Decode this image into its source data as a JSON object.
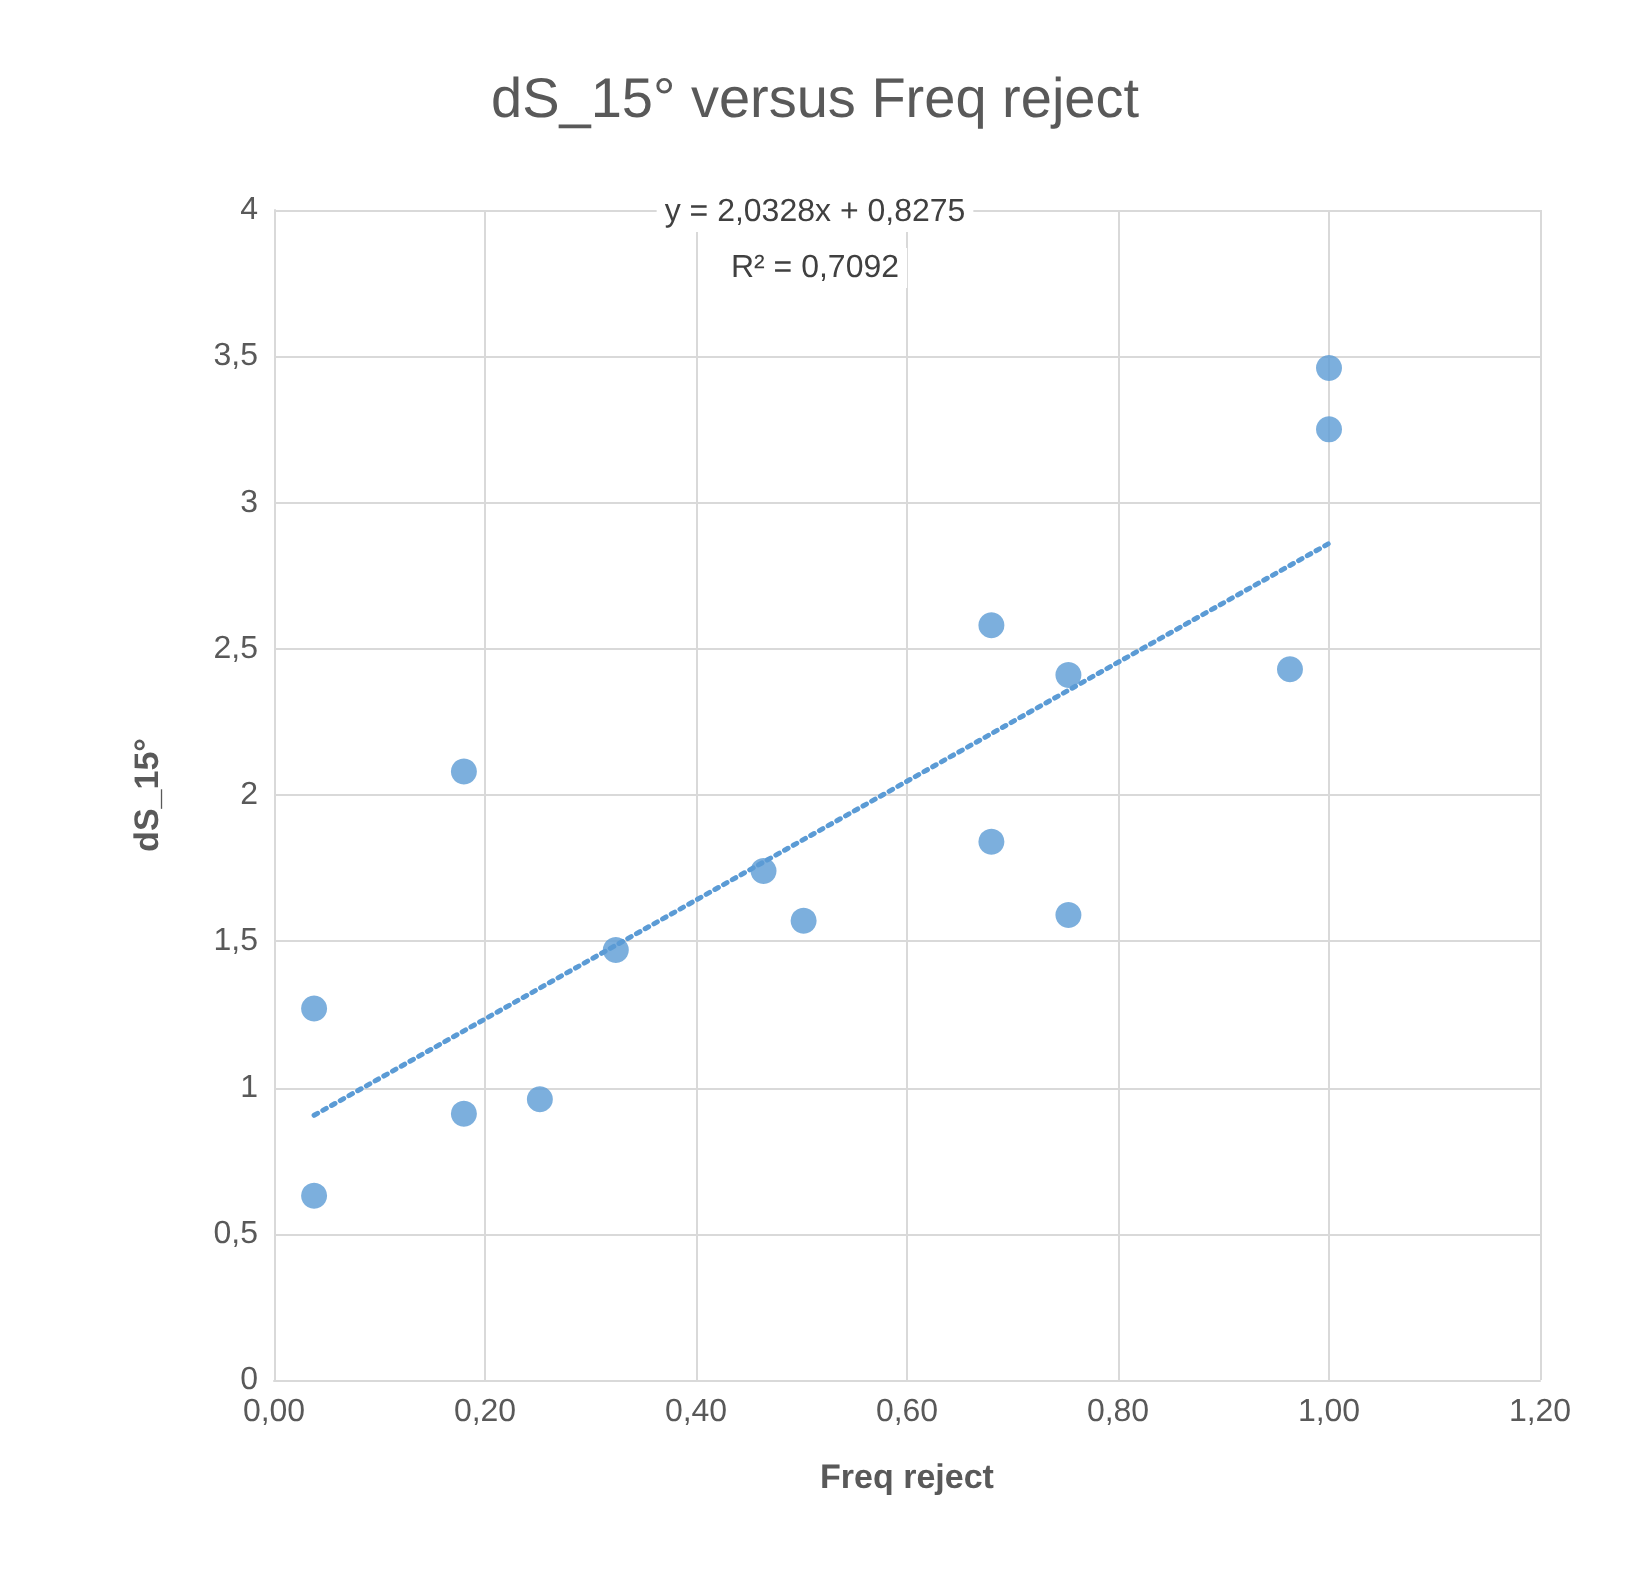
{
  "chart_data": {
    "type": "scatter",
    "title": "dS_15° versus Freq reject",
    "xlabel": "Freq reject",
    "ylabel": "dS_15°",
    "annotations": [
      "y = 2,0328x + 0,8275",
      "R² = 0,7092"
    ],
    "series": [
      {
        "color": "#5b9bd5",
        "x": [
          0.038,
          0.038,
          0.18,
          0.18,
          0.252,
          0.324,
          0.464,
          0.502,
          0.68,
          0.68,
          0.753,
          0.753,
          0.963,
          1.0,
          1.0
        ],
        "values": [
          0.63,
          1.27,
          2.08,
          0.91,
          0.96,
          1.47,
          1.74,
          1.57,
          2.58,
          1.84,
          2.41,
          1.59,
          2.43,
          3.46,
          3.25
        ]
      },
      {
        "type": "line",
        "color": "#5b9bd5",
        "line_style": "dotted",
        "marker": "none",
        "x": [
          0.038,
          1.0
        ],
        "values": [
          0.905,
          2.86
        ]
      }
    ],
    "xlim": [
      0,
      1.2
    ],
    "xticks": [
      {
        "value": 0,
        "label": "0,00"
      },
      {
        "value": 0.2,
        "label": "0,20"
      },
      {
        "value": 0.4,
        "label": "0,40"
      },
      {
        "value": 0.6,
        "label": "0,60"
      },
      {
        "value": 0.8,
        "label": "0,80"
      },
      {
        "value": 1,
        "label": "1,00"
      },
      {
        "value": 1.2,
        "label": "1,20"
      }
    ],
    "ylim": [
      0,
      4
    ],
    "yticks": [
      0,
      {
        "value": 0.5,
        "label": "0,5"
      },
      1,
      {
        "value": 1.5,
        "label": "1,5"
      },
      2,
      {
        "value": 2.5,
        "label": "2,5"
      },
      3,
      {
        "value": 3.5,
        "label": "3,5"
      },
      4
    ],
    "grid": true,
    "marker": "circle"
  }
}
